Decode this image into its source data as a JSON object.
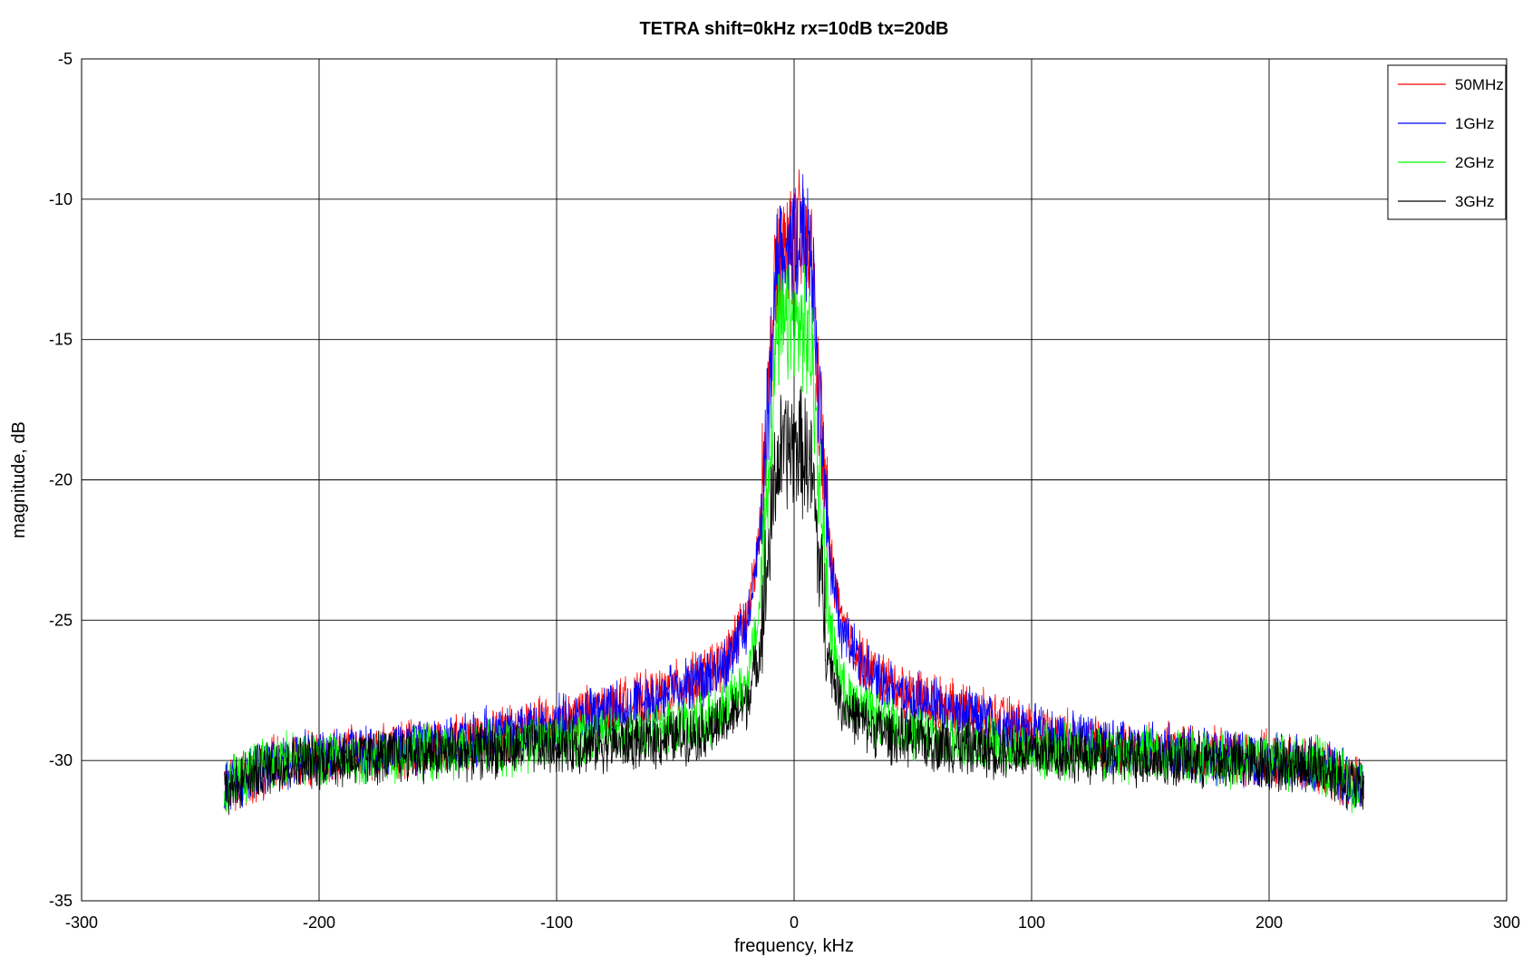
{
  "chart_data": {
    "type": "line",
    "title": "TETRA shift=0kHz rx=10dB tx=20dB",
    "xlabel": "frequency, kHz",
    "ylabel": "magnitude, dB",
    "xlim": [
      -300,
      300
    ],
    "ylim": [
      -35,
      -5
    ],
    "xticks": [
      -300,
      -200,
      -100,
      0,
      100,
      200,
      300
    ],
    "yticks": [
      -35,
      -30,
      -25,
      -20,
      -15,
      -10,
      -5
    ],
    "grid": true,
    "legend_position": "top-right",
    "series": [
      {
        "name": "50MHz",
        "color": "#ff0000",
        "x": [
          -240,
          -220,
          -200,
          -180,
          -160,
          -140,
          -120,
          -100,
          -80,
          -60,
          -40,
          -30,
          -20,
          -15,
          -10,
          -8,
          -6,
          -4,
          -2,
          0,
          2,
          4,
          6,
          8,
          10,
          15,
          20,
          30,
          40,
          60,
          80,
          100,
          120,
          140,
          160,
          180,
          200,
          220,
          240
        ],
        "y": [
          -31,
          -30.2,
          -29.9,
          -29.7,
          -29.6,
          -29.3,
          -29.0,
          -28.6,
          -28.2,
          -27.8,
          -27.1,
          -26.5,
          -25.0,
          -22.5,
          -16.0,
          -12.5,
          -11.8,
          -11.5,
          -11.3,
          -11.5,
          -11.3,
          -11.6,
          -11.9,
          -12.6,
          -16.5,
          -22.5,
          -25.2,
          -26.6,
          -27.3,
          -28.0,
          -28.5,
          -28.9,
          -29.3,
          -29.6,
          -29.7,
          -29.8,
          -30.0,
          -30.2,
          -31
        ]
      },
      {
        "name": "1GHz",
        "color": "#0000ff",
        "x": [
          -240,
          -220,
          -200,
          -180,
          -160,
          -140,
          -120,
          -100,
          -80,
          -60,
          -40,
          -30,
          -20,
          -15,
          -10,
          -8,
          -6,
          -4,
          -2,
          0,
          2,
          4,
          6,
          8,
          10,
          15,
          20,
          30,
          40,
          60,
          80,
          100,
          120,
          140,
          160,
          180,
          200,
          220,
          240
        ],
        "y": [
          -31,
          -30.1,
          -29.8,
          -29.7,
          -29.5,
          -29.3,
          -29.0,
          -28.7,
          -28.3,
          -27.9,
          -27.2,
          -26.6,
          -25.2,
          -22.8,
          -16.2,
          -12.6,
          -11.9,
          -11.6,
          -11.4,
          -11.6,
          -11.4,
          -11.7,
          -12.0,
          -12.8,
          -16.8,
          -22.8,
          -25.4,
          -26.8,
          -27.4,
          -28.1,
          -28.6,
          -29.0,
          -29.3,
          -29.6,
          -29.7,
          -29.9,
          -30.0,
          -30.1,
          -31
        ]
      },
      {
        "name": "2GHz",
        "color": "#00ff00",
        "x": [
          -240,
          -220,
          -200,
          -180,
          -160,
          -140,
          -120,
          -100,
          -80,
          -60,
          -40,
          -30,
          -20,
          -15,
          -10,
          -8,
          -6,
          -4,
          -2,
          0,
          2,
          4,
          6,
          8,
          10,
          15,
          20,
          30,
          40,
          60,
          80,
          100,
          120,
          140,
          160,
          180,
          200,
          220,
          240
        ],
        "y": [
          -31,
          -30.0,
          -29.9,
          -29.9,
          -29.8,
          -29.6,
          -29.5,
          -29.3,
          -29.1,
          -28.9,
          -28.6,
          -28.2,
          -27.3,
          -25.0,
          -19.0,
          -15.5,
          -14.8,
          -14.6,
          -14.5,
          -14.6,
          -14.5,
          -14.7,
          -15.0,
          -15.8,
          -19.5,
          -25.2,
          -27.4,
          -28.3,
          -28.8,
          -29.2,
          -29.4,
          -29.6,
          -29.7,
          -29.8,
          -29.9,
          -29.9,
          -30.0,
          -30.1,
          -31
        ]
      },
      {
        "name": "3GHz",
        "color": "#000000",
        "x": [
          -240,
          -220,
          -200,
          -180,
          -160,
          -140,
          -120,
          -100,
          -80,
          -60,
          -40,
          -30,
          -20,
          -15,
          -10,
          -8,
          -6,
          -4,
          -2,
          0,
          2,
          4,
          6,
          8,
          10,
          15,
          20,
          30,
          40,
          60,
          80,
          100,
          120,
          140,
          160,
          180,
          200,
          220,
          240
        ],
        "y": [
          -31,
          -30.2,
          -30.0,
          -29.9,
          -29.8,
          -29.7,
          -29.6,
          -29.5,
          -29.4,
          -29.3,
          -29.0,
          -28.7,
          -27.9,
          -26.3,
          -22.0,
          -19.8,
          -19.2,
          -19.0,
          -18.8,
          -18.9,
          -18.8,
          -19.1,
          -19.4,
          -20.2,
          -22.5,
          -26.5,
          -28.0,
          -28.7,
          -29.1,
          -29.4,
          -29.6,
          -29.7,
          -29.8,
          -29.9,
          -30.0,
          -30.0,
          -30.1,
          -30.2,
          -31
        ]
      }
    ]
  }
}
